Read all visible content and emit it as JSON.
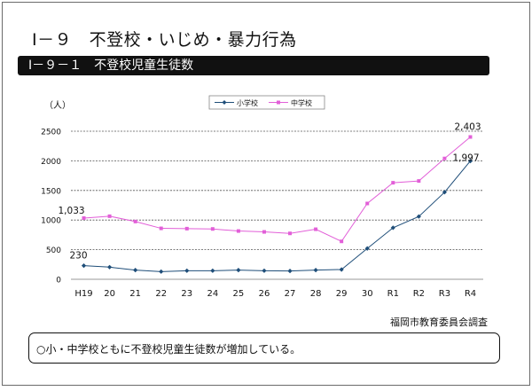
{
  "title": "Ⅰ－９　不登校・いじめ・暴力行為",
  "subtitle": "Ⅰ－９－１　不登校児童生徒数",
  "source": "福岡市教育委員会調査",
  "note": "○小・中学校ともに不登校児童生徒数が増加している。",
  "chart_data": {
    "type": "line",
    "ylabel": "（人）",
    "ylim": [
      0,
      2500
    ],
    "yticks": [
      0,
      500,
      1000,
      1500,
      2000,
      2500
    ],
    "grid": true,
    "legend_position": "top-center",
    "categories": [
      "H19",
      "20",
      "21",
      "22",
      "23",
      "24",
      "25",
      "26",
      "27",
      "28",
      "29",
      "30",
      "R1",
      "R2",
      "R3",
      "R4"
    ],
    "series": [
      {
        "name": "小学校",
        "color": "#1f4e79",
        "values": [
          230,
          205,
          155,
          130,
          145,
          145,
          155,
          145,
          140,
          155,
          165,
          520,
          870,
          1060,
          1470,
          1997
        ]
      },
      {
        "name": "中学校",
        "color": "#e25fd8",
        "values": [
          1033,
          1065,
          975,
          860,
          855,
          850,
          815,
          800,
          775,
          845,
          640,
          1280,
          1630,
          1660,
          2040,
          2403
        ]
      }
    ],
    "data_labels": [
      {
        "series": 1,
        "index": 0,
        "text": "1,033"
      },
      {
        "series": 0,
        "index": 0,
        "text": "230"
      },
      {
        "series": 1,
        "index": 15,
        "text": "2,403"
      },
      {
        "series": 0,
        "index": 15,
        "text": "1,997"
      }
    ]
  }
}
